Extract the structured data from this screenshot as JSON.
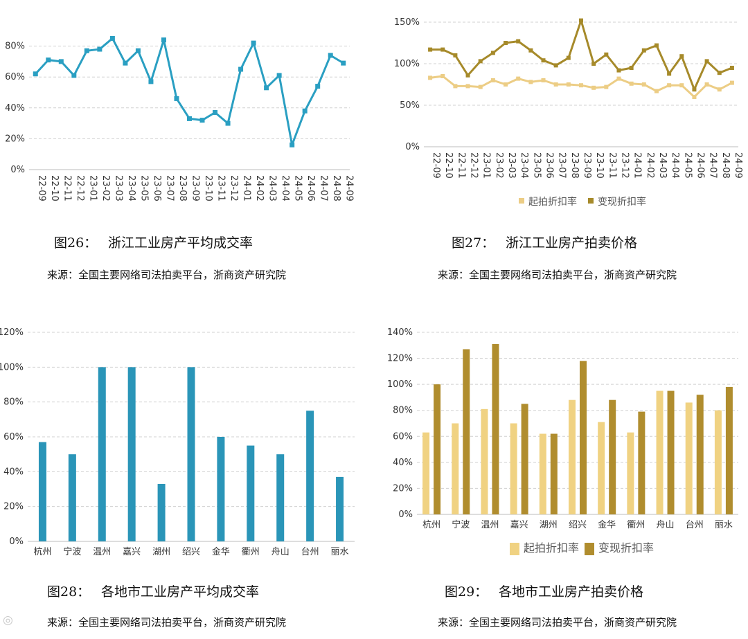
{
  "chart_data": [
    {
      "id": "fig26",
      "type": "line",
      "categories": [
        "22-09",
        "22-10",
        "22-11",
        "22-12",
        "23-01",
        "23-02",
        "23-03",
        "23-04",
        "23-05",
        "23-06",
        "23-07",
        "23-08",
        "23-09",
        "23-10",
        "23-11",
        "23-12",
        "24-01",
        "24-02",
        "24-03",
        "24-04",
        "24-05",
        "24-06",
        "24-07",
        "24-08",
        "24-09"
      ],
      "series": [
        {
          "name": "",
          "color": "#2a9fc2",
          "values": [
            62,
            71,
            70,
            61,
            77,
            78,
            85,
            69,
            77,
            57,
            84,
            46,
            33,
            32,
            37,
            30,
            65,
            82,
            53,
            61,
            16,
            38,
            54,
            74,
            69
          ]
        }
      ],
      "ylim": [
        0,
        100
      ],
      "yticks": [
        0,
        20,
        40,
        60,
        80
      ],
      "yticklabels": [
        "0%",
        "20%",
        "40%",
        "60%",
        "80%"
      ],
      "grid": true,
      "legend": null
    },
    {
      "id": "fig27",
      "type": "line",
      "categories": [
        "22-09",
        "22-10",
        "22-11",
        "22-12",
        "23-01",
        "23-02",
        "23-03",
        "23-04",
        "23-05",
        "23-06",
        "23-07",
        "23-08",
        "23-09",
        "23-10",
        "23-11",
        "23-12",
        "24-01",
        "24-02",
        "24-03",
        "24-04",
        "24-05",
        "24-06",
        "24-07",
        "24-08",
        "24-09"
      ],
      "series": [
        {
          "name": "起拍折扣率",
          "color": "#eccd85",
          "values": [
            83,
            85,
            73,
            73,
            72,
            80,
            75,
            82,
            78,
            80,
            75,
            75,
            74,
            71,
            72,
            82,
            76,
            75,
            67,
            74,
            74,
            60,
            75,
            69,
            77
          ]
        },
        {
          "name": "变现折扣率",
          "color": "#a68a2a",
          "values": [
            117,
            117,
            110,
            86,
            103,
            113,
            125,
            127,
            116,
            104,
            98,
            107,
            152,
            100,
            111,
            92,
            95,
            116,
            122,
            88,
            109,
            69,
            103,
            89,
            95
          ]
        }
      ],
      "ylim": [
        0,
        160
      ],
      "yticks": [
        0,
        50,
        100,
        150
      ],
      "yticklabels": [
        "0%",
        "50%",
        "100%",
        "150%"
      ],
      "grid": true,
      "legend": "bottom"
    },
    {
      "id": "fig28",
      "type": "bar",
      "categories": [
        "杭州",
        "宁波",
        "温州",
        "嘉兴",
        "湖州",
        "绍兴",
        "金华",
        "衢州",
        "舟山",
        "台州",
        "丽水"
      ],
      "series": [
        {
          "name": "",
          "color": "#2a95b8",
          "values": [
            57,
            50,
            100,
            100,
            33,
            100,
            60,
            55,
            50,
            75,
            37
          ]
        }
      ],
      "ylim": [
        0,
        120
      ],
      "yticks": [
        0,
        20,
        40,
        60,
        80,
        100,
        120
      ],
      "yticklabels": [
        "0%",
        "20%",
        "40%",
        "60%",
        "80%",
        "100%",
        "120%"
      ],
      "grid": true,
      "legend": null
    },
    {
      "id": "fig29",
      "type": "bar",
      "categories": [
        "杭州",
        "宁波",
        "温州",
        "嘉兴",
        "湖州",
        "绍兴",
        "金华",
        "衢州",
        "舟山",
        "台州",
        "丽水"
      ],
      "series": [
        {
          "name": "起拍折扣率",
          "color": "#f0d282",
          "values": [
            63,
            70,
            81,
            70,
            62,
            88,
            71,
            63,
            95,
            86,
            80
          ]
        },
        {
          "name": "变现折扣率",
          "color": "#b08d2e",
          "values": [
            100,
            127,
            131,
            85,
            62,
            118,
            88,
            79,
            95,
            92,
            98
          ]
        }
      ],
      "ylim": [
        0,
        140
      ],
      "yticks": [
        0,
        20,
        40,
        60,
        80,
        100,
        120,
        140
      ],
      "yticklabels": [
        "0%",
        "20%",
        "40%",
        "60%",
        "80%",
        "100%",
        "120%",
        "140%"
      ],
      "grid": true,
      "legend": "bottom"
    }
  ],
  "captions": {
    "fig26": {
      "num": "图26：",
      "title": "浙江工业房产平均成交率"
    },
    "fig27": {
      "num": "图27：",
      "title": "浙江工业房产拍卖价格"
    },
    "fig28": {
      "num": "图28：",
      "title": "各地市工业房产平均成交率"
    },
    "fig29": {
      "num": "图29：",
      "title": "各地市工业房产拍卖价格"
    }
  },
  "sources": {
    "fig26": "来源：全国主要网络司法拍卖平台，浙商资产研究院",
    "fig27": "来源：全国主要网络司法拍卖平台，浙商资产研究院",
    "fig28": "来源：全国主要网络司法拍卖平台，浙商资产研究院",
    "fig29": "来源：全国主要网络司法拍卖平台，浙商资产研究院"
  }
}
